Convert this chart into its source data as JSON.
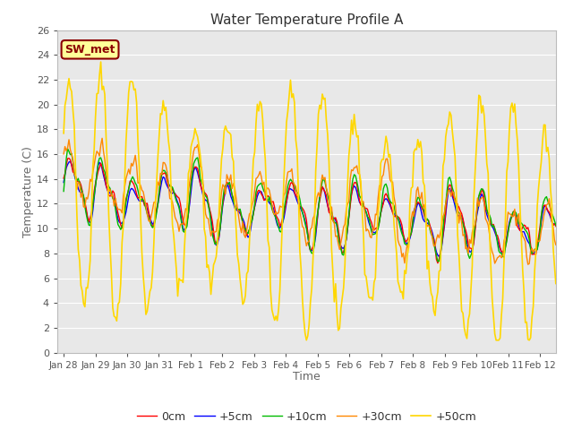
{
  "title": "Water Temperature Profile A",
  "xlabel": "Time",
  "ylabel": "Temperature (C)",
  "ylim": [
    0,
    26
  ],
  "annotation_text": "SW_met",
  "annotation_color": "#8B0000",
  "annotation_bg": "#FFFF99",
  "annotation_border": "#8B0000",
  "x_tick_labels": [
    "Jan 28",
    "Jan 29",
    "Jan 30",
    "Jan 31",
    "Feb 1",
    "Feb 2",
    "Feb 3",
    "Feb 4",
    "Feb 5",
    "Feb 6",
    "Feb 7",
    "Feb 8",
    "Feb 9",
    "Feb 10",
    "Feb 11",
    "Feb 12"
  ],
  "legend_labels": [
    "0cm",
    "+5cm",
    "+10cm",
    "+30cm",
    "+50cm"
  ],
  "line_colors": [
    "#FF0000",
    "#0000FF",
    "#00BB00",
    "#FF8800",
    "#FFD700"
  ],
  "bg_color": "#E8E8E8",
  "grid_color": "#FFFFFF",
  "title_color": "#444444",
  "label_color": "#666666"
}
